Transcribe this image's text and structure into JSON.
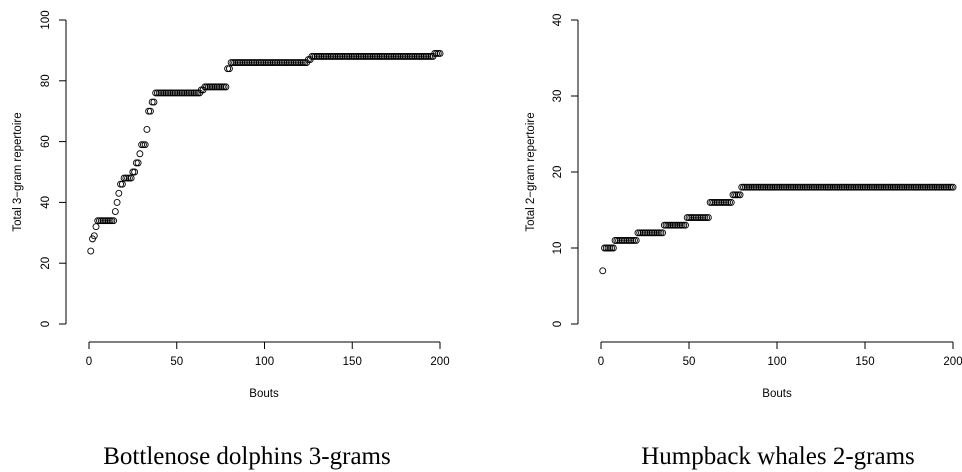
{
  "chart_data": [
    {
      "type": "scatter",
      "caption": "Bottlenose dolphins 3-grams",
      "xlabel": "Bouts",
      "ylabel": "Total 3−gram repertoire",
      "xlim": [
        0,
        200
      ],
      "ylim": [
        0,
        100
      ],
      "x_ticks": [
        "0",
        "50",
        "100",
        "150",
        "200"
      ],
      "y_ticks": [
        "0",
        "20",
        "40",
        "60",
        "80",
        "100"
      ],
      "grid": false,
      "x": [
        1,
        2,
        3,
        4,
        5,
        6,
        7,
        8,
        9,
        10,
        11,
        12,
        13,
        14,
        15,
        16,
        17,
        18,
        19,
        20,
        21,
        22,
        23,
        24,
        25,
        26,
        27,
        28,
        29,
        30,
        31,
        32,
        33,
        34,
        35,
        36,
        37,
        38,
        39,
        40,
        41,
        42,
        43,
        44,
        45,
        46,
        47,
        48,
        49,
        50,
        51,
        52,
        53,
        54,
        55,
        56,
        57,
        58,
        59,
        60,
        61,
        62,
        63,
        64,
        65,
        66,
        67,
        68,
        69,
        70,
        71,
        72,
        73,
        74,
        75,
        76,
        77,
        78,
        79,
        80,
        81,
        82,
        83,
        84,
        85,
        86,
        87,
        88,
        89,
        90,
        91,
        92,
        93,
        94,
        95,
        96,
        97,
        98,
        99,
        100,
        101,
        102,
        103,
        104,
        105,
        106,
        107,
        108,
        109,
        110,
        111,
        112,
        113,
        114,
        115,
        116,
        117,
        118,
        119,
        120,
        121,
        122,
        123,
        124,
        125,
        126,
        127,
        128,
        129,
        130,
        131,
        132,
        133,
        134,
        135,
        136,
        137,
        138,
        139,
        140,
        141,
        142,
        143,
        144,
        145,
        146,
        147,
        148,
        149,
        150,
        151,
        152,
        153,
        154,
        155,
        156,
        157,
        158,
        159,
        160,
        161,
        162,
        163,
        164,
        165,
        166,
        167,
        168,
        169,
        170,
        171,
        172,
        173,
        174,
        175,
        176,
        177,
        178,
        179,
        180,
        181,
        182,
        183,
        184,
        185,
        186,
        187,
        188,
        189,
        190,
        191,
        192,
        193,
        194,
        195,
        196,
        197,
        198,
        199,
        200
      ],
      "y": [
        24,
        28,
        29,
        32,
        34,
        34,
        34,
        34,
        34,
        34,
        34,
        34,
        34,
        34,
        37,
        40,
        43,
        46,
        46,
        48,
        48,
        48,
        48,
        48,
        50,
        50,
        53,
        53,
        56,
        59,
        59,
        59,
        64,
        70,
        70,
        73,
        73,
        76,
        76,
        76,
        76,
        76,
        76,
        76,
        76,
        76,
        76,
        76,
        76,
        76,
        76,
        76,
        76,
        76,
        76,
        76,
        76,
        76,
        76,
        76,
        76,
        76,
        76,
        77,
        77,
        78,
        78,
        78,
        78,
        78,
        78,
        78,
        78,
        78,
        78,
        78,
        78,
        78,
        84,
        84,
        86,
        86,
        86,
        86,
        86,
        86,
        86,
        86,
        86,
        86,
        86,
        86,
        86,
        86,
        86,
        86,
        86,
        86,
        86,
        86,
        86,
        86,
        86,
        86,
        86,
        86,
        86,
        86,
        86,
        86,
        86,
        86,
        86,
        86,
        86,
        86,
        86,
        86,
        86,
        86,
        86,
        86,
        86,
        86,
        87,
        87,
        88,
        88,
        88,
        88,
        88,
        88,
        88,
        88,
        88,
        88,
        88,
        88,
        88,
        88,
        88,
        88,
        88,
        88,
        88,
        88,
        88,
        88,
        88,
        88,
        88,
        88,
        88,
        88,
        88,
        88,
        88,
        88,
        88,
        88,
        88,
        88,
        88,
        88,
        88,
        88,
        88,
        88,
        88,
        88,
        88,
        88,
        88,
        88,
        88,
        88,
        88,
        88,
        88,
        88,
        88,
        88,
        88,
        88,
        88,
        88,
        88,
        88,
        88,
        88,
        88,
        88,
        88,
        88,
        88,
        88,
        89,
        89,
        89,
        89
      ]
    },
    {
      "type": "scatter",
      "caption": "Humpback whales 2-grams",
      "xlabel": "Bouts",
      "ylabel": "Total 2−gram repertoire",
      "xlim": [
        0,
        200
      ],
      "ylim": [
        0,
        40
      ],
      "x_ticks": [
        "0",
        "50",
        "100",
        "150",
        "200"
      ],
      "y_ticks": [
        "0",
        "10",
        "20",
        "30",
        "40"
      ],
      "grid": false,
      "x": [
        1,
        2,
        3,
        4,
        5,
        6,
        7,
        8,
        9,
        10,
        11,
        12,
        13,
        14,
        15,
        16,
        17,
        18,
        19,
        20,
        21,
        22,
        23,
        24,
        25,
        26,
        27,
        28,
        29,
        30,
        31,
        32,
        33,
        34,
        35,
        36,
        37,
        38,
        39,
        40,
        41,
        42,
        43,
        44,
        45,
        46,
        47,
        48,
        49,
        50,
        51,
        52,
        53,
        54,
        55,
        56,
        57,
        58,
        59,
        60,
        61,
        62,
        63,
        64,
        65,
        66,
        67,
        68,
        69,
        70,
        71,
        72,
        73,
        74,
        75,
        76,
        77,
        78,
        79,
        80,
        81,
        82,
        83,
        84,
        85,
        86,
        87,
        88,
        89,
        90,
        91,
        92,
        93,
        94,
        95,
        96,
        97,
        98,
        99,
        100,
        101,
        102,
        103,
        104,
        105,
        106,
        107,
        108,
        109,
        110,
        111,
        112,
        113,
        114,
        115,
        116,
        117,
        118,
        119,
        120,
        121,
        122,
        123,
        124,
        125,
        126,
        127,
        128,
        129,
        130,
        131,
        132,
        133,
        134,
        135,
        136,
        137,
        138,
        139,
        140,
        141,
        142,
        143,
        144,
        145,
        146,
        147,
        148,
        149,
        150,
        151,
        152,
        153,
        154,
        155,
        156,
        157,
        158,
        159,
        160,
        161,
        162,
        163,
        164,
        165,
        166,
        167,
        168,
        169,
        170,
        171,
        172,
        173,
        174,
        175,
        176,
        177,
        178,
        179,
        180,
        181,
        182,
        183,
        184,
        185,
        186,
        187,
        188,
        189,
        190,
        191,
        192,
        193,
        194,
        195,
        196,
        197,
        198,
        199,
        200
      ],
      "y": [
        7,
        10,
        10,
        10,
        10,
        10,
        10,
        11,
        11,
        11,
        11,
        11,
        11,
        11,
        11,
        11,
        11,
        11,
        11,
        11,
        12,
        12,
        12,
        12,
        12,
        12,
        12,
        12,
        12,
        12,
        12,
        12,
        12,
        12,
        12,
        13,
        13,
        13,
        13,
        13,
        13,
        13,
        13,
        13,
        13,
        13,
        13,
        13,
        14,
        14,
        14,
        14,
        14,
        14,
        14,
        14,
        14,
        14,
        14,
        14,
        14,
        16,
        16,
        16,
        16,
        16,
        16,
        16,
        16,
        16,
        16,
        16,
        16,
        16,
        17,
        17,
        17,
        17,
        17,
        18,
        18,
        18,
        18,
        18,
        18,
        18,
        18,
        18,
        18,
        18,
        18,
        18,
        18,
        18,
        18,
        18,
        18,
        18,
        18,
        18,
        18,
        18,
        18,
        18,
        18,
        18,
        18,
        18,
        18,
        18,
        18,
        18,
        18,
        18,
        18,
        18,
        18,
        18,
        18,
        18,
        18,
        18,
        18,
        18,
        18,
        18,
        18,
        18,
        18,
        18,
        18,
        18,
        18,
        18,
        18,
        18,
        18,
        18,
        18,
        18,
        18,
        18,
        18,
        18,
        18,
        18,
        18,
        18,
        18,
        18,
        18,
        18,
        18,
        18,
        18,
        18,
        18,
        18,
        18,
        18,
        18,
        18,
        18,
        18,
        18,
        18,
        18,
        18,
        18,
        18,
        18,
        18,
        18,
        18,
        18,
        18,
        18,
        18,
        18,
        18,
        18,
        18,
        18,
        18,
        18,
        18,
        18,
        18,
        18,
        18,
        18,
        18,
        18,
        18,
        18,
        18,
        18,
        18,
        18,
        18
      ]
    }
  ]
}
